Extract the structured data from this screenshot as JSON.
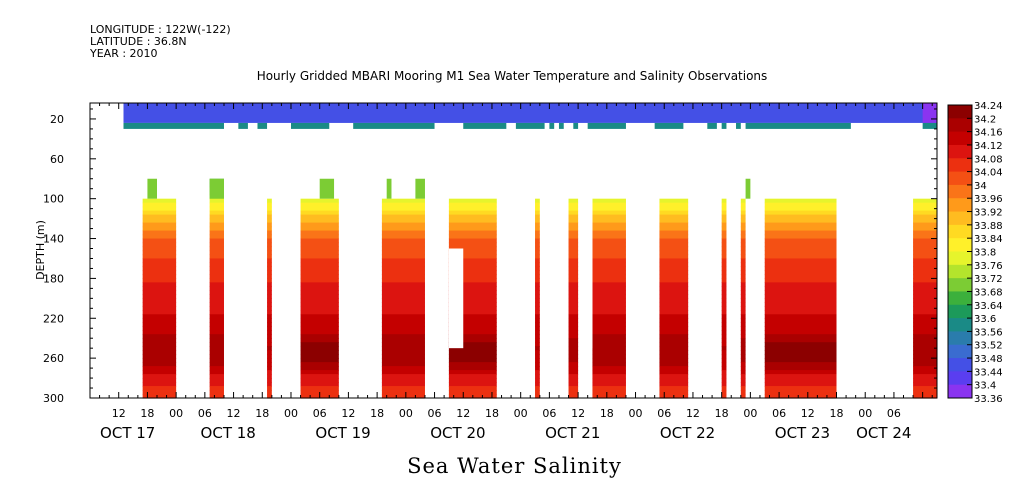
{
  "header": {
    "longitude": "LONGITUDE : 122W(-122)",
    "latitude": "LATITUDE : 36.8N",
    "year": "YEAR : 2010"
  },
  "chart_data": {
    "type": "heatmap",
    "title": "Hourly Gridded MBARI Mooring M1 Sea Water Temperature and Salinity Observations",
    "xlabel": "Sea Water Salinity",
    "ylabel": "DEPTH (m)",
    "x_unit": "hours",
    "xlim": [
      0,
      177
    ],
    "ylim": [
      300,
      4
    ],
    "y_reversed": true,
    "grid": false,
    "y_ticks": [
      20,
      60,
      100,
      140,
      180,
      220,
      260,
      300
    ],
    "hour_ticks": [
      {
        "t": 6,
        "label": "12"
      },
      {
        "t": 12,
        "label": "18"
      },
      {
        "t": 18,
        "label": "00"
      },
      {
        "t": 24,
        "label": "06"
      },
      {
        "t": 30,
        "label": "12"
      },
      {
        "t": 36,
        "label": "18"
      },
      {
        "t": 42,
        "label": "00"
      },
      {
        "t": 48,
        "label": "06"
      },
      {
        "t": 54,
        "label": "12"
      },
      {
        "t": 60,
        "label": "18"
      },
      {
        "t": 66,
        "label": "00"
      },
      {
        "t": 72,
        "label": "06"
      },
      {
        "t": 78,
        "label": "12"
      },
      {
        "t": 84,
        "label": "18"
      },
      {
        "t": 90,
        "label": "00"
      },
      {
        "t": 96,
        "label": "06"
      },
      {
        "t": 102,
        "label": "12"
      },
      {
        "t": 108,
        "label": "18"
      },
      {
        "t": 114,
        "label": "00"
      },
      {
        "t": 120,
        "label": "06"
      },
      {
        "t": 126,
        "label": "12"
      },
      {
        "t": 132,
        "label": "18"
      },
      {
        "t": 138,
        "label": "00"
      },
      {
        "t": 144,
        "label": "06"
      },
      {
        "t": 150,
        "label": "12"
      },
      {
        "t": 156,
        "label": "18"
      },
      {
        "t": 162,
        "label": "00"
      },
      {
        "t": 168,
        "label": "06"
      }
    ],
    "day_labels": [
      {
        "t": 6,
        "label": "OCT 17"
      },
      {
        "t": 27,
        "label": "OCT 18"
      },
      {
        "t": 51,
        "label": "OCT 19"
      },
      {
        "t": 75,
        "label": "OCT 20"
      },
      {
        "t": 99,
        "label": "OCT 21"
      },
      {
        "t": 123,
        "label": "OCT 22"
      },
      {
        "t": 147,
        "label": "OCT 23"
      },
      {
        "t": 164,
        "label": "OCT 24"
      }
    ],
    "colorbar": {
      "levels": [
        34.24,
        34.2,
        34.16,
        34.12,
        34.08,
        34.04,
        34,
        33.96,
        33.92,
        33.88,
        33.84,
        33.8,
        33.76,
        33.72,
        33.68,
        33.64,
        33.6,
        33.56,
        33.52,
        33.48,
        33.44,
        33.4,
        33.36
      ],
      "colors": [
        "#8c0000",
        "#aa0000",
        "#c40000",
        "#dc1410",
        "#ec3010",
        "#f45014",
        "#fa7418",
        "#ff9a1a",
        "#ffbc20",
        "#ffda22",
        "#fff02a",
        "#e6f42c",
        "#b4e42c",
        "#7ccc34",
        "#3cb03c",
        "#1c9a5a",
        "#1a8a86",
        "#2a7cac",
        "#3a6cd0",
        "#4450e6",
        "#5a3ef0",
        "#8a34f0",
        "#b034f0"
      ]
    },
    "shallow_band": {
      "depth_top": 4,
      "depth_mid": 24,
      "depth_bottom": 30,
      "top_layer_salinity": 33.48,
      "mid_layer_salinity": 33.6,
      "top_layer_span": [
        7,
        177
      ],
      "mid_layer_segments": [
        [
          7,
          28
        ],
        [
          31,
          33
        ],
        [
          35,
          37
        ],
        [
          42,
          50
        ],
        [
          55,
          72
        ],
        [
          78,
          87
        ],
        [
          89,
          95
        ],
        [
          96,
          97
        ],
        [
          98,
          99
        ],
        [
          101,
          102
        ],
        [
          104,
          112
        ],
        [
          118,
          124
        ],
        [
          129,
          131
        ],
        [
          132,
          133
        ],
        [
          135,
          136
        ],
        [
          137,
          159
        ],
        [
          174,
          177
        ]
      ],
      "purple_patch": [
        174,
        177
      ]
    },
    "deep_segments": [
      {
        "t0": 11,
        "t1": 18,
        "top": 100,
        "bottom": 300,
        "peak": 34.22
      },
      {
        "t0": 25,
        "t1": 28,
        "top": 80,
        "bottom": 300,
        "peak": 34.22
      },
      {
        "t0": 37,
        "t1": 38,
        "top": 100,
        "bottom": 300,
        "peak": 34.18
      },
      {
        "t0": 44,
        "t1": 52,
        "top": 100,
        "bottom": 300,
        "peak": 34.24
      },
      {
        "t0": 61,
        "t1": 70,
        "top": 100,
        "bottom": 300,
        "peak": 34.22
      },
      {
        "t0": 75,
        "t1": 85,
        "top": 100,
        "bottom": 300,
        "peak": 34.24
      },
      {
        "t0": 93,
        "t1": 94,
        "top": 100,
        "bottom": 300,
        "peak": 34.18
      },
      {
        "t0": 100,
        "t1": 102,
        "top": 100,
        "bottom": 300,
        "peak": 34.2
      },
      {
        "t0": 105,
        "t1": 112,
        "top": 100,
        "bottom": 300,
        "peak": 34.22
      },
      {
        "t0": 119,
        "t1": 125,
        "top": 100,
        "bottom": 300,
        "peak": 34.22
      },
      {
        "t0": 132,
        "t1": 133,
        "top": 100,
        "bottom": 300,
        "peak": 34.18
      },
      {
        "t0": 136,
        "t1": 137,
        "top": 100,
        "bottom": 300,
        "peak": 34.2
      },
      {
        "t0": 141,
        "t1": 156,
        "top": 100,
        "bottom": 300,
        "peak": 34.24
      },
      {
        "t0": 172,
        "t1": 177,
        "top": 100,
        "bottom": 300,
        "peak": 34.22
      }
    ],
    "green_caps": [
      {
        "t0": 12,
        "t1": 14,
        "top": 80,
        "bottom": 100
      },
      {
        "t0": 25,
        "t1": 28,
        "top": 80,
        "bottom": 100
      },
      {
        "t0": 48,
        "t1": 51,
        "top": 80,
        "bottom": 100
      },
      {
        "t0": 62,
        "t1": 63,
        "top": 80,
        "bottom": 100
      },
      {
        "t0": 68,
        "t1": 70,
        "top": 80,
        "bottom": 100
      },
      {
        "t0": 137,
        "t1": 138,
        "top": 80,
        "bottom": 100
      }
    ],
    "gaps": [
      {
        "t0": 75,
        "t1": 78,
        "top": 150,
        "bottom": 250
      },
      {
        "t0": 103,
        "t1": 105,
        "top": 100,
        "bottom": 250
      }
    ]
  }
}
